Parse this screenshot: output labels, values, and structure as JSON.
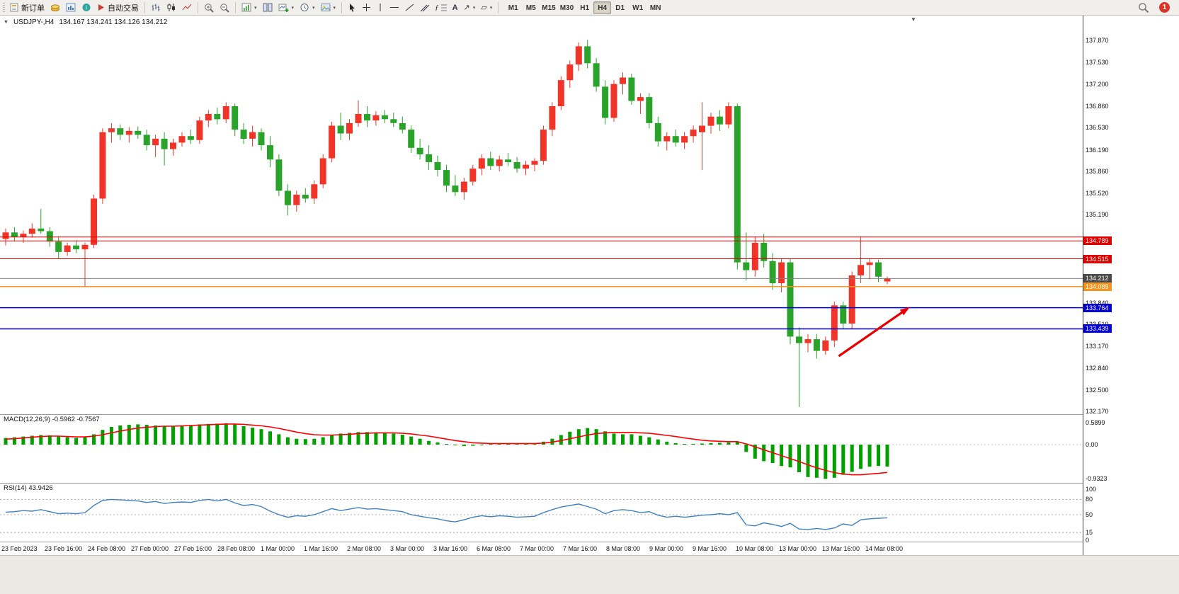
{
  "toolbar": {
    "new_order_label": "新订单",
    "auto_trading_label": "自动交易",
    "timeframes": [
      "M1",
      "M5",
      "M15",
      "M30",
      "H1",
      "H4",
      "D1",
      "W1",
      "MN"
    ],
    "active_timeframe": "H4",
    "notification_count": "1"
  },
  "chart": {
    "header_symbol": "USDJPY-,H4",
    "header_ohlc": "134.167 134.241 134.126 134.212",
    "collapse_marker": "▼"
  },
  "panels": {
    "macd_label": "MACD(12,26,9) -0.5962 -0.7567",
    "rsi_label": "RSI(14) 43.9426"
  },
  "price_axis_ticks": [
    "137.870",
    "137.530",
    "137.200",
    "136.860",
    "136.530",
    "136.190",
    "135.860",
    "135.520",
    "135.190",
    "133.840",
    "133.510",
    "133.170",
    "132.840",
    "132.500",
    "132.170"
  ],
  "macd_axis_ticks": [
    {
      "v": 0.5899,
      "label": "0.5899"
    },
    {
      "v": 0,
      "label": "0.00"
    },
    {
      "v": -0.9323,
      "label": "-0.9323"
    }
  ],
  "rsi_axis_ticks": [
    {
      "v": 100,
      "label": "100"
    },
    {
      "v": 80,
      "label": "80"
    },
    {
      "v": 50,
      "label": "50"
    },
    {
      "v": 15,
      "label": "15"
    },
    {
      "v": 0,
      "label": "0"
    }
  ],
  "time_axis_ticks": [
    "23 Feb 2023",
    "23 Feb 16:00",
    "24 Feb 08:00",
    "27 Feb 00:00",
    "27 Feb 16:00",
    "28 Feb 08:00",
    "1 Mar 00:00",
    "1 Mar 16:00",
    "2 Mar 08:00",
    "3 Mar 00:00",
    "3 Mar 16:00",
    "6 Mar 08:00",
    "7 Mar 00:00",
    "7 Mar 16:00",
    "8 Mar 08:00",
    "9 Mar 00:00",
    "9 Mar 16:00",
    "10 Mar 08:00",
    "13 Mar 00:00",
    "13 Mar 16:00",
    "14 Mar 08:00"
  ],
  "price_lines": [
    {
      "price": 134.85,
      "color": "#e00000",
      "width": 1
    },
    {
      "price": 134.789,
      "color": "#e00000",
      "width": 1,
      "badge": "134.789",
      "badge_bg": "#e00000"
    },
    {
      "price": 134.515,
      "color": "#e00000",
      "width": 1,
      "badge": "134.515",
      "badge_bg": "#e00000"
    },
    {
      "price": 134.212,
      "color": "#808080",
      "width": 1,
      "badge": "134.212",
      "badge_bg": "#4a4a4a"
    },
    {
      "price": 134.089,
      "color": "#f7941d",
      "width": 1.5,
      "badge": "134.089",
      "badge_bg": "#f7941d"
    },
    {
      "price": 133.764,
      "color": "#0000d0",
      "width": 1.5,
      "badge": "133.764",
      "badge_bg": "#0000d0"
    },
    {
      "price": 133.439,
      "color": "#0000d0",
      "width": 1.5,
      "badge": "133.439",
      "badge_bg": "#0000d0"
    }
  ],
  "colors": {
    "up": "#f03427",
    "down": "#2aa32a",
    "macd_hist": "#00a000",
    "macd_signal": "#ff0000",
    "rsi_line": "#4080c0",
    "arrow": "#e80000"
  },
  "chart_data": {
    "type": "candlestick",
    "symbol": "USDJPY-",
    "period": "H4",
    "ylim": [
      132.14,
      138.25
    ],
    "candles": [
      [
        134.82,
        134.98,
        134.72,
        134.92
      ],
      [
        134.92,
        135.0,
        134.78,
        134.85
      ],
      [
        134.85,
        134.95,
        134.76,
        134.9
      ],
      [
        134.9,
        135.06,
        134.84,
        134.98
      ],
      [
        134.98,
        135.28,
        134.9,
        134.94
      ],
      [
        134.94,
        135.0,
        134.7,
        134.78
      ],
      [
        134.78,
        134.86,
        134.52,
        134.62
      ],
      [
        134.62,
        134.76,
        134.56,
        134.72
      ],
      [
        134.72,
        134.8,
        134.6,
        134.66
      ],
      [
        134.66,
        134.76,
        134.08,
        134.73
      ],
      [
        134.73,
        135.5,
        134.68,
        135.44
      ],
      [
        135.44,
        136.52,
        135.36,
        136.46
      ],
      [
        136.46,
        136.6,
        136.3,
        136.52
      ],
      [
        136.52,
        136.58,
        136.34,
        136.42
      ],
      [
        136.42,
        136.54,
        136.3,
        136.48
      ],
      [
        136.48,
        136.55,
        136.36,
        136.42
      ],
      [
        136.42,
        136.5,
        136.18,
        136.26
      ],
      [
        136.26,
        136.42,
        136.08,
        136.36
      ],
      [
        136.36,
        136.46,
        135.95,
        136.2
      ],
      [
        136.2,
        136.36,
        136.1,
        136.3
      ],
      [
        136.3,
        136.46,
        136.24,
        136.4
      ],
      [
        136.4,
        136.5,
        136.28,
        136.34
      ],
      [
        136.34,
        136.7,
        136.28,
        136.64
      ],
      [
        136.64,
        136.8,
        136.54,
        136.74
      ],
      [
        136.74,
        136.84,
        136.58,
        136.66
      ],
      [
        136.66,
        136.92,
        136.6,
        136.86
      ],
      [
        136.86,
        136.9,
        136.4,
        136.5
      ],
      [
        136.5,
        136.6,
        136.28,
        136.36
      ],
      [
        136.36,
        136.56,
        136.24,
        136.46
      ],
      [
        136.46,
        136.52,
        136.18,
        136.26
      ],
      [
        136.26,
        136.4,
        135.92,
        136.04
      ],
      [
        136.04,
        136.12,
        135.48,
        135.56
      ],
      [
        135.56,
        135.66,
        135.18,
        135.34
      ],
      [
        135.34,
        135.56,
        135.24,
        135.5
      ],
      [
        135.5,
        135.6,
        135.38,
        135.44
      ],
      [
        135.44,
        135.72,
        135.36,
        135.66
      ],
      [
        135.66,
        136.12,
        135.6,
        136.06
      ],
      [
        136.06,
        136.62,
        136.0,
        136.56
      ],
      [
        136.56,
        136.76,
        136.34,
        136.44
      ],
      [
        136.44,
        136.66,
        136.34,
        136.6
      ],
      [
        136.6,
        136.95,
        136.54,
        136.74
      ],
      [
        136.74,
        136.86,
        136.54,
        136.64
      ],
      [
        136.64,
        136.78,
        136.56,
        136.72
      ],
      [
        136.72,
        136.8,
        136.6,
        136.66
      ],
      [
        136.66,
        136.76,
        136.54,
        136.6
      ],
      [
        136.6,
        136.7,
        136.44,
        136.5
      ],
      [
        136.5,
        136.56,
        136.14,
        136.22
      ],
      [
        136.22,
        136.36,
        136.04,
        136.12
      ],
      [
        136.12,
        136.26,
        135.88,
        136.0
      ],
      [
        136.0,
        136.1,
        135.78,
        135.88
      ],
      [
        135.88,
        135.96,
        135.54,
        135.64
      ],
      [
        135.64,
        135.8,
        135.48,
        135.54
      ],
      [
        135.54,
        135.76,
        135.42,
        135.7
      ],
      [
        135.7,
        135.96,
        135.64,
        135.9
      ],
      [
        135.9,
        136.12,
        135.8,
        136.06
      ],
      [
        136.06,
        136.16,
        135.88,
        135.94
      ],
      [
        135.94,
        136.1,
        135.86,
        136.04
      ],
      [
        136.04,
        136.14,
        135.94,
        136.0
      ],
      [
        136.0,
        136.08,
        135.84,
        135.9
      ],
      [
        135.9,
        136.02,
        135.8,
        135.96
      ],
      [
        135.96,
        136.06,
        135.86,
        136.02
      ],
      [
        136.02,
        136.56,
        135.96,
        136.5
      ],
      [
        136.5,
        136.92,
        136.4,
        136.86
      ],
      [
        136.86,
        137.32,
        136.8,
        137.26
      ],
      [
        137.26,
        137.56,
        137.14,
        137.5
      ],
      [
        137.5,
        137.84,
        137.4,
        137.78
      ],
      [
        137.78,
        137.88,
        137.44,
        137.52
      ],
      [
        137.52,
        137.6,
        137.08,
        137.16
      ],
      [
        137.16,
        137.26,
        136.58,
        136.68
      ],
      [
        136.68,
        137.26,
        136.62,
        137.2
      ],
      [
        137.2,
        137.38,
        137.04,
        137.3
      ],
      [
        137.3,
        137.36,
        136.88,
        136.94
      ],
      [
        136.94,
        137.06,
        136.74,
        137.0
      ],
      [
        137.0,
        137.06,
        136.52,
        136.6
      ],
      [
        136.6,
        136.7,
        136.24,
        136.32
      ],
      [
        136.32,
        136.46,
        136.18,
        136.4
      ],
      [
        136.4,
        136.5,
        136.24,
        136.3
      ],
      [
        136.3,
        136.46,
        136.2,
        136.4
      ],
      [
        136.4,
        136.56,
        136.3,
        136.5
      ],
      [
        136.46,
        136.92,
        135.88,
        136.56
      ],
      [
        136.56,
        136.76,
        136.44,
        136.7
      ],
      [
        136.7,
        136.8,
        136.48,
        136.58
      ],
      [
        136.58,
        136.92,
        136.52,
        136.86
      ],
      [
        136.86,
        136.9,
        134.35,
        134.46
      ],
      [
        134.46,
        134.92,
        134.18,
        134.34
      ],
      [
        134.34,
        134.86,
        134.24,
        134.76
      ],
      [
        134.76,
        134.9,
        134.38,
        134.48
      ],
      [
        134.48,
        134.6,
        134.04,
        134.14
      ],
      [
        134.14,
        134.52,
        134.0,
        134.46
      ],
      [
        134.46,
        134.52,
        133.2,
        133.32
      ],
      [
        133.32,
        133.46,
        132.24,
        133.22
      ],
      [
        133.22,
        133.36,
        133.08,
        133.28
      ],
      [
        133.28,
        133.36,
        132.98,
        133.1
      ],
      [
        133.1,
        133.32,
        133.04,
        133.26
      ],
      [
        133.26,
        133.86,
        133.16,
        133.8
      ],
      [
        133.8,
        133.86,
        133.44,
        133.52
      ],
      [
        133.52,
        134.32,
        133.44,
        134.26
      ],
      [
        134.26,
        134.86,
        134.14,
        134.42
      ],
      [
        134.42,
        134.52,
        134.2,
        134.46
      ],
      [
        134.46,
        134.5,
        134.16,
        134.24
      ],
      [
        134.167,
        134.241,
        134.126,
        134.212
      ]
    ],
    "macd": {
      "hist": [
        0.18,
        0.2,
        0.22,
        0.24,
        0.26,
        0.25,
        0.22,
        0.2,
        0.18,
        0.2,
        0.28,
        0.4,
        0.48,
        0.52,
        0.54,
        0.55,
        0.54,
        0.52,
        0.5,
        0.5,
        0.52,
        0.53,
        0.55,
        0.56,
        0.57,
        0.58,
        0.55,
        0.5,
        0.46,
        0.42,
        0.36,
        0.28,
        0.2,
        0.16,
        0.15,
        0.16,
        0.2,
        0.26,
        0.3,
        0.32,
        0.34,
        0.34,
        0.33,
        0.32,
        0.3,
        0.27,
        0.22,
        0.16,
        0.1,
        0.06,
        0.02,
        -0.02,
        -0.04,
        -0.03,
        0.0,
        0.02,
        0.03,
        0.03,
        0.02,
        0.02,
        0.03,
        0.08,
        0.16,
        0.26,
        0.35,
        0.42,
        0.45,
        0.42,
        0.36,
        0.3,
        0.28,
        0.28,
        0.24,
        0.2,
        0.14,
        0.08,
        0.04,
        0.02,
        0.02,
        0.03,
        0.04,
        0.05,
        0.06,
        0.08,
        -0.2,
        -0.38,
        -0.45,
        -0.5,
        -0.58,
        -0.62,
        -0.75,
        -0.88,
        -0.9,
        -0.93,
        -0.9,
        -0.82,
        -0.74,
        -0.66,
        -0.6,
        -0.58,
        -0.5962
      ],
      "signal": [
        0.15,
        0.16,
        0.18,
        0.2,
        0.22,
        0.23,
        0.23,
        0.22,
        0.21,
        0.21,
        0.23,
        0.27,
        0.32,
        0.37,
        0.41,
        0.45,
        0.47,
        0.49,
        0.5,
        0.5,
        0.51,
        0.52,
        0.53,
        0.54,
        0.55,
        0.56,
        0.56,
        0.55,
        0.53,
        0.51,
        0.48,
        0.44,
        0.39,
        0.34,
        0.3,
        0.27,
        0.26,
        0.26,
        0.27,
        0.28,
        0.3,
        0.31,
        0.32,
        0.32,
        0.32,
        0.31,
        0.29,
        0.26,
        0.23,
        0.19,
        0.15,
        0.11,
        0.08,
        0.05,
        0.04,
        0.03,
        0.03,
        0.03,
        0.03,
        0.03,
        0.03,
        0.04,
        0.07,
        0.11,
        0.16,
        0.21,
        0.26,
        0.3,
        0.32,
        0.33,
        0.33,
        0.33,
        0.32,
        0.31,
        0.28,
        0.25,
        0.22,
        0.18,
        0.15,
        0.12,
        0.1,
        0.09,
        0.08,
        0.08,
        0.02,
        -0.06,
        -0.14,
        -0.22,
        -0.3,
        -0.38,
        -0.46,
        -0.55,
        -0.63,
        -0.7,
        -0.76,
        -0.8,
        -0.82,
        -0.82,
        -0.8,
        -0.78,
        -0.7567
      ],
      "range": [
        -0.9323,
        0.5899
      ]
    },
    "rsi": {
      "values": [
        55,
        56,
        58,
        57,
        60,
        56,
        52,
        53,
        52,
        54,
        68,
        78,
        80,
        79,
        78,
        77,
        74,
        76,
        72,
        74,
        75,
        74,
        78,
        80,
        77,
        80,
        73,
        68,
        70,
        66,
        57,
        50,
        45,
        48,
        47,
        50,
        56,
        62,
        58,
        61,
        64,
        61,
        62,
        60,
        58,
        56,
        50,
        47,
        44,
        42,
        38,
        36,
        40,
        45,
        48,
        46,
        48,
        47,
        45,
        46,
        47,
        54,
        60,
        65,
        68,
        71,
        66,
        61,
        52,
        58,
        60,
        58,
        54,
        56,
        49,
        45,
        47,
        45,
        47,
        49,
        50,
        52,
        50,
        54,
        30,
        28,
        34,
        31,
        27,
        33,
        22,
        21,
        23,
        21,
        24,
        32,
        29,
        40,
        42,
        43,
        43.94
      ],
      "levels": [
        80,
        50,
        15
      ],
      "range": [
        0,
        100
      ]
    },
    "annotation_arrow": {
      "from_index": 94.5,
      "from_price": 133.02,
      "to_index": 102.3,
      "to_price": 133.75
    }
  }
}
